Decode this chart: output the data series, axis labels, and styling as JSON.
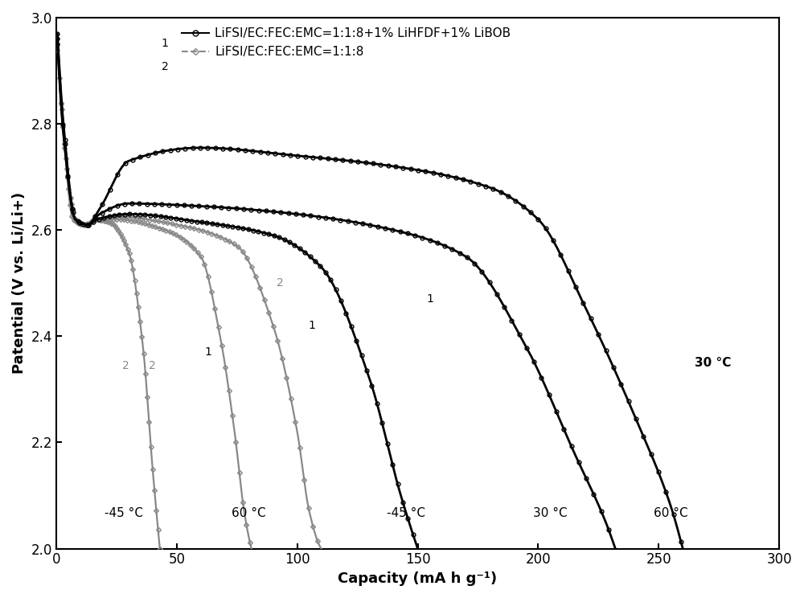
{
  "xlabel": "Capacity (mA h g⁻¹)",
  "ylabel": "Patential (V vs. Li/Li+)",
  "xlim": [
    0,
    300
  ],
  "ylim": [
    2.0,
    3.0
  ],
  "xticks": [
    0,
    50,
    100,
    150,
    200,
    250,
    300
  ],
  "yticks": [
    2.0,
    2.2,
    2.4,
    2.6,
    2.8,
    3.0
  ],
  "legend1_label": "LiFSI/EC:FEC:EMC=1:1:8+1% LiHFDF+1% LiBOB",
  "legend2_label": "LiFSI/EC:FEC:EMC=1:1:8",
  "color1": "#000000",
  "color2": "#888888",
  "bg_color": "#ffffff",
  "lw1": 2.0,
  "lw2": 1.6
}
